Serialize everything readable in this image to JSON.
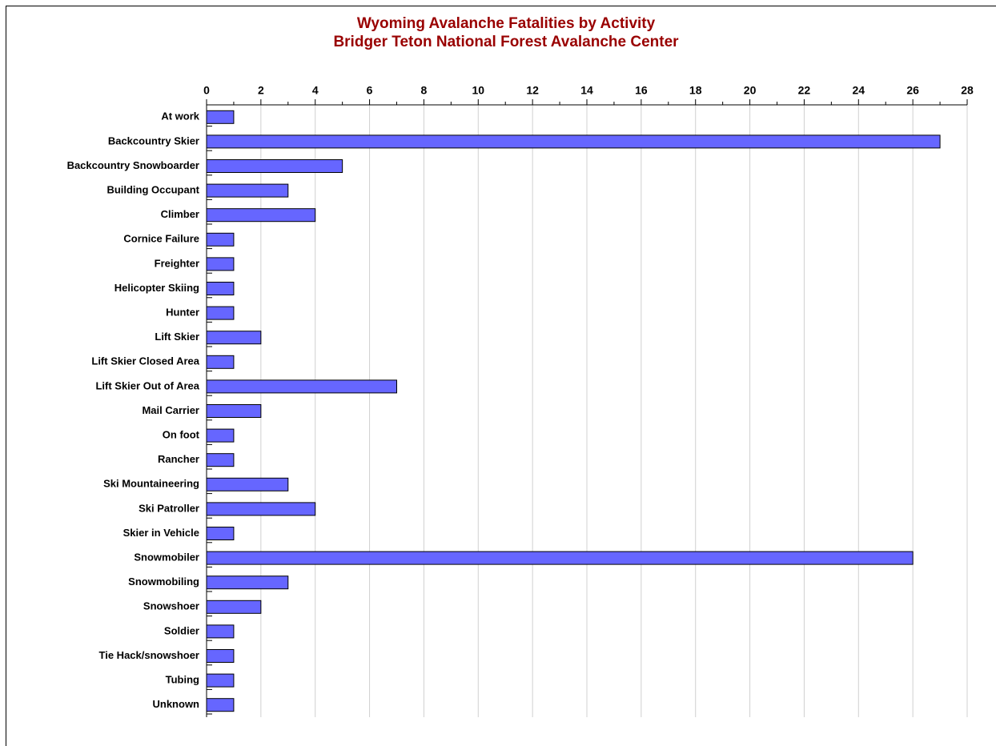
{
  "chart_data": {
    "type": "bar",
    "orientation": "horizontal",
    "title": "Wyoming Avalanche Fatalities by Activity",
    "subtitle": "Bridger Teton National Forest Avalanche Center",
    "categories": [
      "At work",
      "Backcountry Skier",
      "Backcountry Snowboarder",
      "Building Occupant",
      "Climber",
      "Cornice Failure",
      "Freighter",
      "Helicopter Skiing",
      "Hunter",
      "Lift Skier",
      "Lift Skier Closed Area",
      "Lift Skier Out of Area",
      "Mail Carrier",
      "On foot",
      "Rancher",
      "Ski Mountaineering",
      "Ski Patroller",
      "Skier in Vehicle",
      "Snowmobiler",
      "Snowmobiling",
      "Snowshoer",
      "Soldier",
      "Tie Hack/snowshoer",
      "Tubing",
      "Unknown"
    ],
    "values": [
      1,
      27,
      5,
      3,
      4,
      1,
      1,
      1,
      1,
      2,
      1,
      7,
      2,
      1,
      1,
      3,
      4,
      1,
      26,
      3,
      2,
      1,
      1,
      1,
      1
    ],
    "color": "#6666ff",
    "xlim": [
      0,
      28
    ],
    "xticks": [
      0,
      2,
      4,
      6,
      8,
      10,
      12,
      14,
      16,
      18,
      20,
      22,
      24,
      26,
      28
    ],
    "grid": true
  }
}
